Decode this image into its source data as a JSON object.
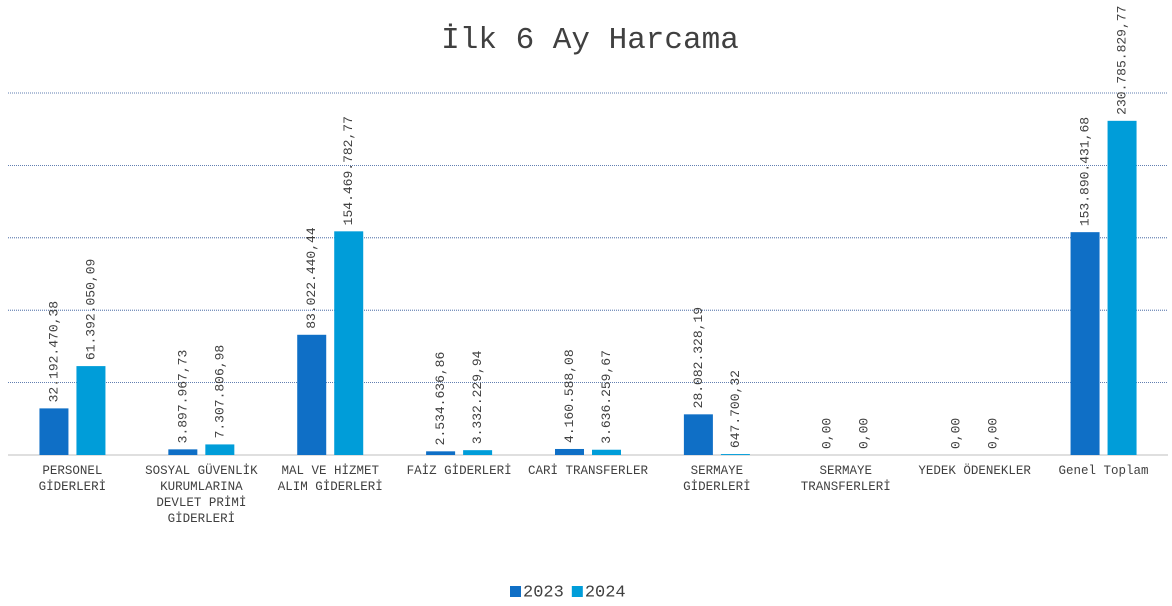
{
  "chart_data": {
    "type": "bar",
    "title": "İlk 6 Ay Harcama",
    "categories": [
      "PERSONEL GİDERLERİ",
      "SOSYAL GÜVENLİK KURUMLARINA DEVLET PRİMİ GİDERLERİ",
      "MAL VE HİZMET ALIM GİDERLERİ",
      "FAİZ GİDERLERİ",
      "CARİ TRANSFERLER",
      "SERMAYE GİDERLERİ",
      "SERMAYE TRANSFERLERİ",
      "YEDEK ÖDENEKLER",
      "Genel Toplam"
    ],
    "series": [
      {
        "name": "2023",
        "color": "#0f6fc6",
        "values": [
          32192470.38,
          3897967.73,
          83022440.44,
          2534636.86,
          4160588.08,
          28082328.19,
          0,
          0,
          153890431.68
        ],
        "value_labels": [
          "32.192.470,38",
          "3.897.967,73",
          "83.022.440,44",
          "2.534.636,86",
          "4.160.588,08",
          "28.082.328,19",
          "0,00",
          "0,00",
          "153.890.431,68"
        ]
      },
      {
        "name": "2024",
        "color": "#009dd9",
        "values": [
          61392050.09,
          7307806.98,
          154469782.77,
          3332229.94,
          3636259.67,
          647700.32,
          0,
          0,
          230785829.77
        ],
        "value_labels": [
          "61.392.050,09",
          "7.307.806,98",
          "154.469.782,77",
          "3.332.229,94",
          "3.636.259,67",
          "647.700,32",
          "0,00",
          "0,00",
          "230.785.829,77"
        ]
      }
    ],
    "ylim": [
      0,
      250000000
    ],
    "yticks": [
      0,
      50000000,
      100000000,
      150000000,
      200000000,
      250000000
    ],
    "grid": true,
    "legend": "bottom"
  }
}
